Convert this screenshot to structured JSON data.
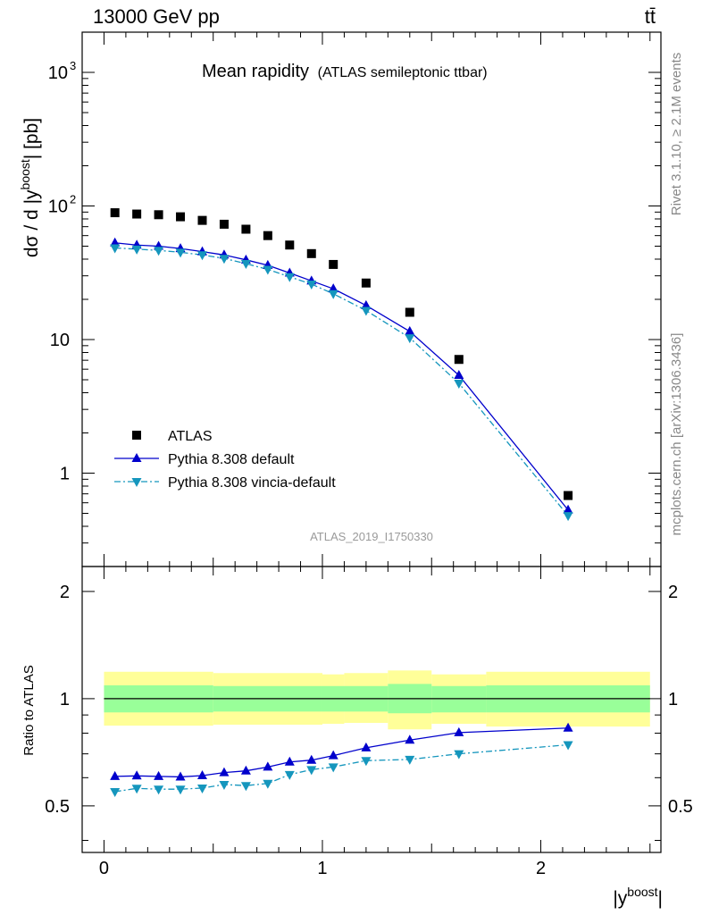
{
  "header": {
    "left": "13000 GeV pp",
    "right": "tt̄"
  },
  "title": {
    "main": "Mean rapidity",
    "sub": "(ATLAS semileptonic ttbar)"
  },
  "watermark": "ATLAS_2019_I1750330",
  "side_text": {
    "top": "Rivet 3.1.10, ≥ 2.1M events",
    "bottom": "mcplots.cern.ch [arXiv:1306.3436]"
  },
  "axes": {
    "main_ylabel_pre": "dσ / d |y",
    "main_ylabel_sup": "boost",
    "main_ylabel_post": "| [pb]",
    "ratio_ylabel": "Ratio to ATLAS",
    "xlabel_pre": "|y",
    "xlabel_sup": "boost",
    "xlabel_post": "|",
    "main_yticks": [
      {
        "value": 1,
        "label": "1"
      },
      {
        "value": 10,
        "label": "10"
      },
      {
        "value": 100,
        "label": "10",
        "sup": "2"
      },
      {
        "value": 1000,
        "label": "10",
        "sup": "3"
      }
    ],
    "ratio_yticks": [
      {
        "value": 0.5,
        "label": "0.5"
      },
      {
        "value": 1,
        "label": "1"
      },
      {
        "value": 2,
        "label": "2"
      }
    ],
    "xticks": [
      {
        "value": 0,
        "label": "0"
      },
      {
        "value": 1,
        "label": "1"
      },
      {
        "value": 2,
        "label": "2"
      }
    ]
  },
  "legend": [
    {
      "name": "ATLAS",
      "color": "#000000",
      "marker": "square"
    },
    {
      "name": "Pythia 8.308 default",
      "color": "#0000cc",
      "marker": "triangle-up"
    },
    {
      "name": "Pythia 8.308 vincia-default",
      "color": "#1596bd",
      "marker": "triangle-down"
    }
  ],
  "chart_data": {
    "type": "scatter",
    "x_range": [
      -0.1,
      2.55
    ],
    "main_y_range": [
      0.2,
      2000
    ],
    "main_y_scale": "log",
    "ratio_y_range": [
      0.37,
      2.35
    ],
    "ratio_y_scale": "log",
    "bins": [
      {
        "x": 0.05,
        "xlo": 0.0,
        "xhi": 0.1
      },
      {
        "x": 0.15,
        "xlo": 0.1,
        "xhi": 0.2
      },
      {
        "x": 0.25,
        "xlo": 0.2,
        "xhi": 0.3
      },
      {
        "x": 0.35,
        "xlo": 0.3,
        "xhi": 0.4
      },
      {
        "x": 0.45,
        "xlo": 0.4,
        "xhi": 0.5
      },
      {
        "x": 0.55,
        "xlo": 0.5,
        "xhi": 0.6
      },
      {
        "x": 0.65,
        "xlo": 0.6,
        "xhi": 0.7
      },
      {
        "x": 0.75,
        "xlo": 0.7,
        "xhi": 0.8
      },
      {
        "x": 0.85,
        "xlo": 0.8,
        "xhi": 0.9
      },
      {
        "x": 0.95,
        "xlo": 0.9,
        "xhi": 1.0
      },
      {
        "x": 1.05,
        "xlo": 1.0,
        "xhi": 1.1
      },
      {
        "x": 1.2,
        "xlo": 1.1,
        "xhi": 1.3
      },
      {
        "x": 1.4,
        "xlo": 1.3,
        "xhi": 1.5
      },
      {
        "x": 1.625,
        "xlo": 1.5,
        "xhi": 1.75
      },
      {
        "x": 2.125,
        "xlo": 1.75,
        "xhi": 2.5
      }
    ],
    "series": [
      {
        "name": "ATLAS",
        "values": [
          89,
          87,
          86,
          83,
          78,
          73,
          67,
          60,
          51,
          44,
          36.5,
          26.5,
          16,
          7.1,
          0.68
        ]
      },
      {
        "name": "Pythia 8.308 default",
        "values": [
          53,
          51,
          50,
          48,
          45.5,
          43,
          39.5,
          36,
          31.5,
          27.5,
          24,
          18,
          11.5,
          5.4,
          0.53
        ]
      },
      {
        "name": "Pythia 8.308 vincia-default",
        "values": [
          48.5,
          47.5,
          46.5,
          45,
          43,
          40.5,
          37,
          33.5,
          29.5,
          26,
          22,
          16.5,
          10.3,
          4.7,
          0.48
        ]
      }
    ],
    "ratio": {
      "reference": 1.0,
      "band_inner": [
        {
          "xlo": 0.0,
          "xhi": 0.5,
          "lo": 0.915,
          "hi": 1.09
        },
        {
          "xlo": 0.5,
          "xhi": 1.0,
          "lo": 0.92,
          "hi": 1.085
        },
        {
          "xlo": 1.0,
          "xhi": 1.3,
          "lo": 0.92,
          "hi": 1.085
        },
        {
          "xlo": 1.3,
          "xhi": 1.5,
          "lo": 0.91,
          "hi": 1.1
        },
        {
          "xlo": 1.5,
          "xhi": 1.75,
          "lo": 0.915,
          "hi": 1.085
        },
        {
          "xlo": 1.75,
          "xhi": 2.5,
          "lo": 0.915,
          "hi": 1.09
        }
      ],
      "band_outer": [
        {
          "xlo": 0.0,
          "xhi": 0.5,
          "lo": 0.84,
          "hi": 1.19
        },
        {
          "xlo": 0.5,
          "xhi": 1.0,
          "lo": 0.845,
          "hi": 1.18
        },
        {
          "xlo": 1.0,
          "xhi": 1.1,
          "lo": 0.85,
          "hi": 1.17
        },
        {
          "xlo": 1.1,
          "xhi": 1.3,
          "lo": 0.855,
          "hi": 1.18
        },
        {
          "xlo": 1.3,
          "xhi": 1.5,
          "lo": 0.82,
          "hi": 1.2
        },
        {
          "xlo": 1.5,
          "xhi": 1.75,
          "lo": 0.85,
          "hi": 1.17
        },
        {
          "xlo": 1.75,
          "xhi": 2.5,
          "lo": 0.835,
          "hi": 1.19
        }
      ],
      "series": [
        {
          "name": "Pythia 8.308 default",
          "values": [
            0.605,
            0.607,
            0.605,
            0.603,
            0.608,
            0.62,
            0.627,
            0.643,
            0.664,
            0.672,
            0.692,
            0.728,
            0.765,
            0.803,
            0.827
          ]
        },
        {
          "name": "Pythia 8.308 vincia-default",
          "values": [
            0.548,
            0.56,
            0.557,
            0.557,
            0.561,
            0.574,
            0.57,
            0.578,
            0.612,
            0.632,
            0.643,
            0.67,
            0.675,
            0.7,
            0.742
          ]
        }
      ]
    }
  }
}
